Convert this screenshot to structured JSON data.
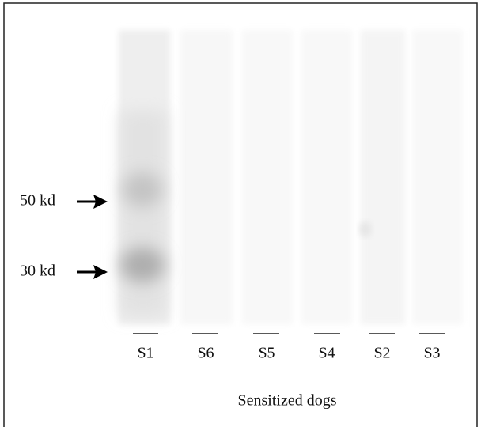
{
  "markers": [
    {
      "label": "50 kd"
    },
    {
      "label": "30 kd"
    }
  ],
  "lanes": [
    {
      "label": "S1"
    },
    {
      "label": "S6"
    },
    {
      "label": "S5"
    },
    {
      "label": "S4"
    },
    {
      "label": "S2"
    },
    {
      "label": "S3"
    }
  ],
  "caption": "Sensitized dogs"
}
